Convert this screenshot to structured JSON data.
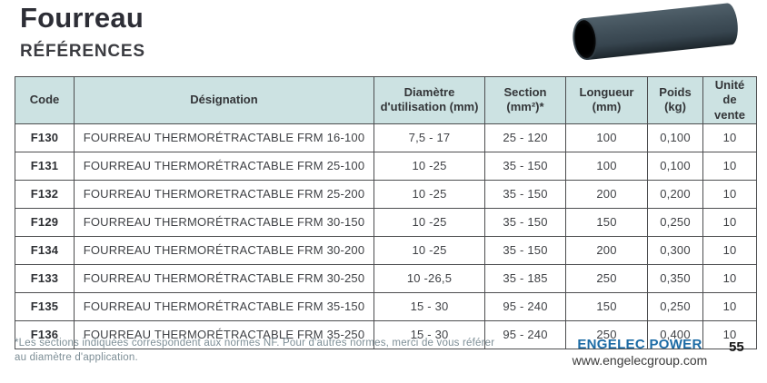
{
  "page": {
    "title": "Fourreau",
    "subtitle": "RÉFÉRENCES",
    "page_number": "55"
  },
  "product_image": {
    "alt": "fourreau-thermoretractable-tube"
  },
  "table": {
    "columns": [
      "Code",
      "Désignation",
      "Diamètre\nd'utilisation (mm)",
      "Section\n(mm²)*",
      "Longueur\n(mm)",
      "Poids\n(kg)",
      "Unité\nde vente"
    ],
    "rows": [
      {
        "code": "F130",
        "designation": "FOURREAU THERMORÉTRACTABLE FRM 16-100",
        "diametre": "7,5 - 17",
        "section": "25 - 120",
        "longueur": "100",
        "poids": "0,100",
        "unite": "10"
      },
      {
        "code": "F131",
        "designation": "FOURREAU THERMORÉTRACTABLE FRM 25-100",
        "diametre": "10 -25",
        "section": "35 - 150",
        "longueur": "100",
        "poids": "0,100",
        "unite": "10"
      },
      {
        "code": "F132",
        "designation": "FOURREAU THERMORETRACTABLE FRM 25-200",
        "diametre": "10 -25",
        "section": "35 - 150",
        "longueur": "200",
        "poids": "0,200",
        "unite": "10"
      },
      {
        "code": "F129",
        "designation": "FOURREAU THERMORÉTRACTABLE FRM 30-150",
        "diametre": "10 -25",
        "section": "35 - 150",
        "longueur": "150",
        "poids": "0,250",
        "unite": "10"
      },
      {
        "code": "F134",
        "designation": "FOURREAU THERMORÉTRACTABLE FRM 30-200",
        "diametre": "10 -25",
        "section": "35 - 150",
        "longueur": "200",
        "poids": "0,300",
        "unite": "10"
      },
      {
        "code": "F133",
        "designation": "FOURREAU THERMORÉTRACTABLE FRM 30-250",
        "diametre": "10 -26,5",
        "section": "35 - 185",
        "longueur": "250",
        "poids": "0,350",
        "unite": "10"
      },
      {
        "code": "F135",
        "designation": "FOURREAU THERMORÉTRACTABLE FRM 35-150",
        "diametre": "15 - 30",
        "section": "95 - 240",
        "longueur": "150",
        "poids": "0,250",
        "unite": "10"
      },
      {
        "code": "F136",
        "designation": "FOURREAU THERMORÉTRACTABLE FRM 35-250",
        "diametre": "15 - 30",
        "section": "95 - 240",
        "longueur": "250",
        "poids": "0,400",
        "unite": "10"
      }
    ]
  },
  "footnote": {
    "text": "*Les sections indiquées correspondent aux normes NF. Pour d'autres normes, merci de vous référer au diamètre d'application."
  },
  "footer": {
    "brand": "ENGELEC POWER",
    "website": "www.engelecgroup.com"
  },
  "colors": {
    "header_bg": "#cce2e2",
    "brand_blue": "#1c6ba5",
    "footnote": "#7d8e96",
    "tube_body": "#41505a"
  }
}
